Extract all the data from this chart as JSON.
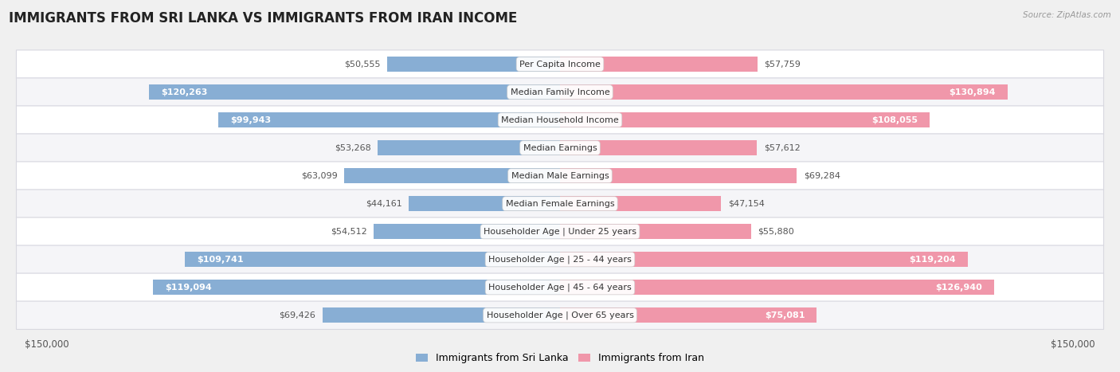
{
  "title": "IMMIGRANTS FROM SRI LANKA VS IMMIGRANTS FROM IRAN INCOME",
  "source": "Source: ZipAtlas.com",
  "categories": [
    "Per Capita Income",
    "Median Family Income",
    "Median Household Income",
    "Median Earnings",
    "Median Male Earnings",
    "Median Female Earnings",
    "Householder Age | Under 25 years",
    "Householder Age | 25 - 44 years",
    "Householder Age | 45 - 64 years",
    "Householder Age | Over 65 years"
  ],
  "sri_lanka_values": [
    50555,
    120263,
    99943,
    53268,
    63099,
    44161,
    54512,
    109741,
    119094,
    69426
  ],
  "iran_values": [
    57759,
    130894,
    108055,
    57612,
    69284,
    47154,
    55880,
    119204,
    126940,
    75081
  ],
  "sri_lanka_color": "#88aed4",
  "iran_color": "#f097aa",
  "bar_height": 0.55,
  "max_value": 150000,
  "background_color": "#f0f0f0",
  "row_colors": [
    "#ffffff",
    "#f5f5f8"
  ],
  "legend_sri_lanka": "Immigrants from Sri Lanka",
  "legend_iran": "Immigrants from Iran",
  "label_fontsize": 8.0,
  "title_fontsize": 12,
  "value_inside_color": "#ffffff",
  "value_outside_color": "#555555",
  "threshold": 75000
}
